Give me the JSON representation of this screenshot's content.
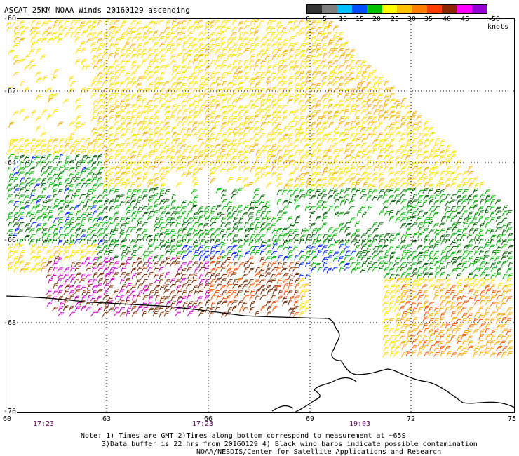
{
  "title": "ASCAT 25KM NOAA Winds 20160129 ascending",
  "scale": {
    "labels": [
      "0",
      "5",
      "10",
      "15",
      "20",
      "25",
      "30",
      "35",
      "40",
      "45",
      ">50 knots"
    ],
    "colors": [
      "#333333",
      "#7f7f7f",
      "#00bfff",
      "#0050ff",
      "#00c000",
      "#ffff00",
      "#ffc000",
      "#ff8000",
      "#ff3c00",
      "#8b2500",
      "#ff00ff",
      "#9400d3"
    ]
  },
  "axes": {
    "lat_labels": [
      "-60",
      "-62",
      "-64",
      "-66",
      "-68",
      "-70"
    ],
    "lon_labels": [
      "60",
      "63",
      "66",
      "69",
      "72",
      "75"
    ],
    "time_labels": [
      "17:23",
      "17:23",
      "19:03"
    ]
  },
  "footer": {
    "line1": "Note: 1) Times are GMT 2)Times along bottom correspond to measurement at ~65S",
    "line2": "3)Data buffer is 22 hrs from 20160129 4) Black wind barbs indicate possible contamination",
    "line3": "NOAA/NESDIS/Center for Satellite Applications and Research"
  }
}
